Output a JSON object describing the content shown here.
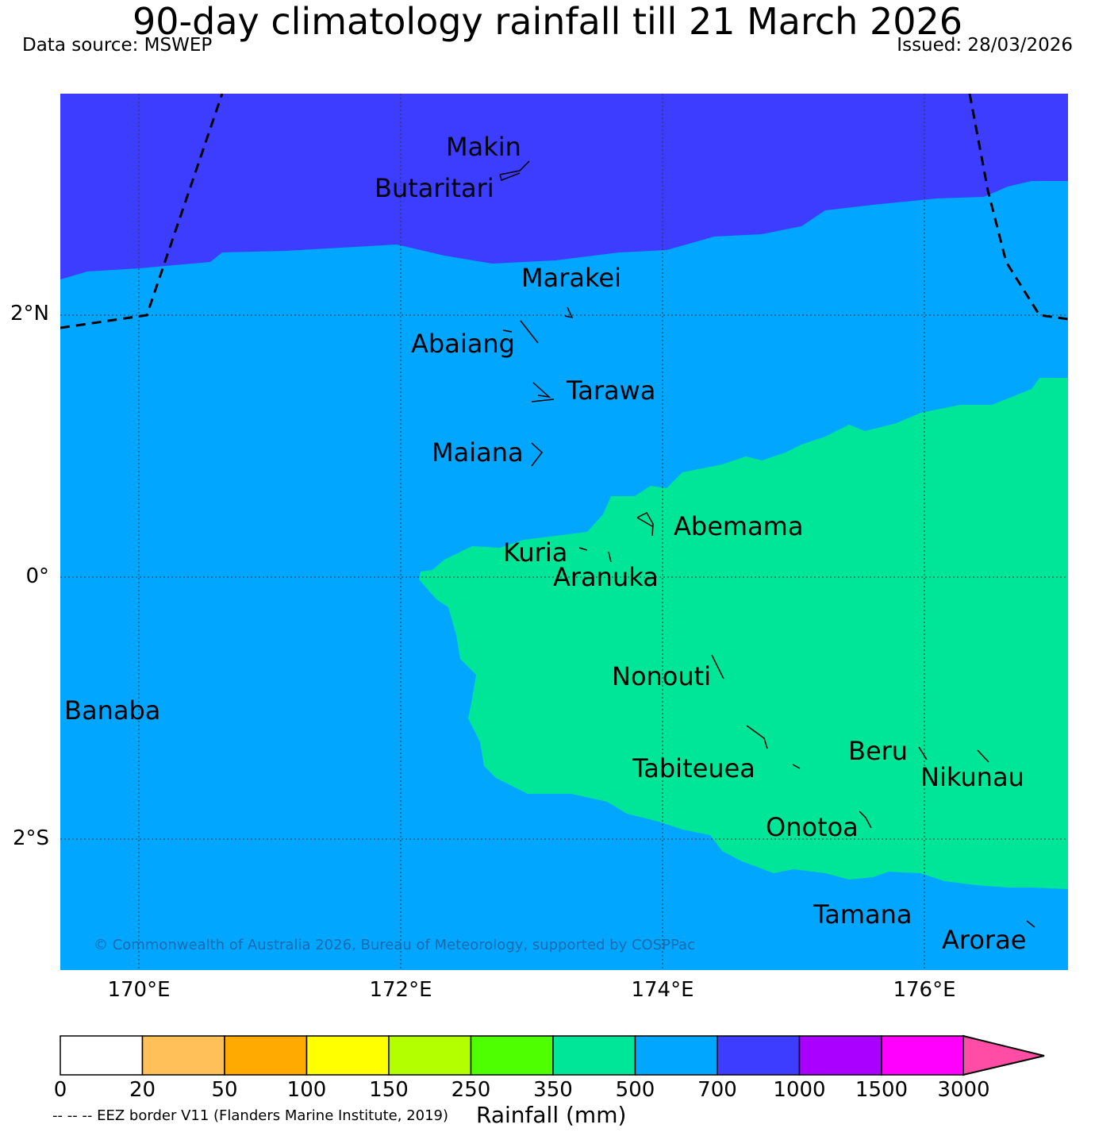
{
  "header": {
    "title": "90-day climatology rainfall till 21 March 2026",
    "source": "Data source: MSWEP",
    "issued": "Issued: 28/03/2026"
  },
  "map": {
    "lat_labels": [
      "2°N",
      "0°",
      "2°S"
    ],
    "lon_labels": [
      "170°E",
      "172°E",
      "174°E",
      "176°E"
    ],
    "islands": [
      "Makin",
      "Butaritari",
      "Marakei",
      "Abaiang",
      "Tarawa",
      "Maiana",
      "Abemama",
      "Kuria",
      "Aranuka",
      "Nonouti",
      "Banaba",
      "Beru",
      "Tabiteuea",
      "Nikunau",
      "Onotoa",
      "Tamana",
      "Arorae"
    ],
    "copyright": "© Commonwealth of Australia 2026, Bureau of Meteorology, supported by COSPPac",
    "eez_note": "-- -- -- EEZ border V11 (Flanders Marine Institute, 2019)",
    "zone_colors": {
      "r350_500": "#00e699",
      "r500_700": "#00a6ff",
      "r700_1000": "#3d3dff"
    }
  },
  "colorbar": {
    "label": "Rainfall (mm)",
    "ticks": [
      "0",
      "20",
      "50",
      "100",
      "150",
      "250",
      "350",
      "500",
      "700",
      "1000",
      "1500",
      "3000"
    ],
    "colors": [
      "#ffffff",
      "#ffbf59",
      "#ffaa00",
      "#ffff00",
      "#b3ff00",
      "#4dff00",
      "#00e699",
      "#00a6ff",
      "#3d3dff",
      "#aa00ff",
      "#ff00ff"
    ],
    "extend_color": "#ff4da6"
  }
}
